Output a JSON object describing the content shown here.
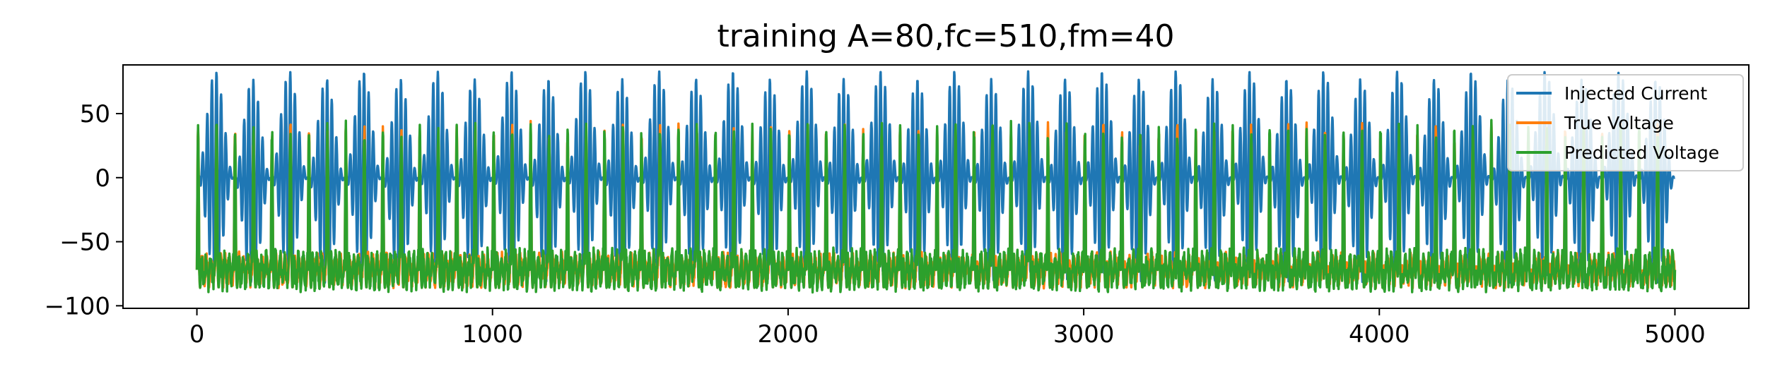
{
  "chart_data": {
    "type": "line",
    "title": "training A=80,fc=510,fm=40",
    "xlabel": "",
    "ylabel": "",
    "xlim": [
      -250,
      5250
    ],
    "ylim": [
      -102,
      88
    ],
    "x_ticks": [
      0,
      1000,
      2000,
      3000,
      4000,
      5000
    ],
    "x_tick_labels": [
      "0",
      "1000",
      "2000",
      "3000",
      "4000",
      "5000"
    ],
    "y_ticks": [
      50,
      0,
      -50,
      -100
    ],
    "y_tick_labels": [
      "50",
      "0",
      "−50",
      "−100"
    ],
    "grid": false,
    "legend_position": "top-right",
    "x_range": [
      0,
      5000
    ],
    "series": [
      {
        "name": "Injected Current",
        "color": "#1f77b4",
        "amplitude": 80,
        "description_values": {
          "min": -80,
          "max": 80,
          "carrier_periods_per_5000": 40,
          "modulation": "AM"
        }
      },
      {
        "name": "True Voltage",
        "color": "#ff7f0e",
        "baseline": -72,
        "spike_peak": 45,
        "spike_count": 80
      },
      {
        "name": "Predicted Voltage",
        "color": "#2ca02c",
        "baseline": -72,
        "spike_peak": 45,
        "spike_count": 80
      }
    ]
  }
}
